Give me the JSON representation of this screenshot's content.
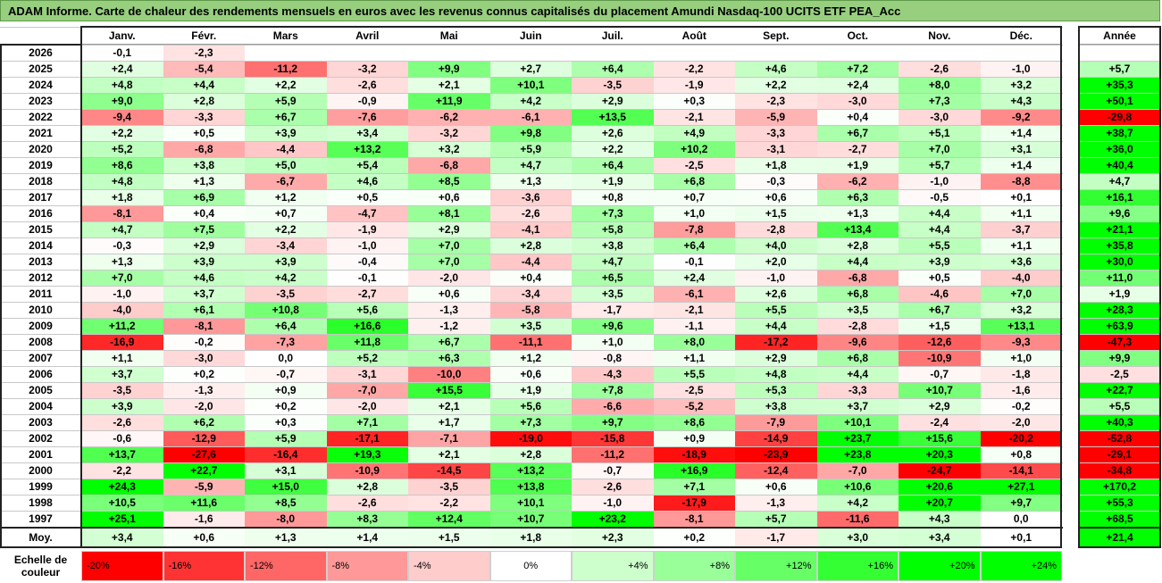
{
  "title": "ADAM Informe. Carte de chaleur des rendements mensuels en euros avec les revenus connus capitalisés du placement Amundi Nasdaq-100 UCITS ETF PEA_Acc",
  "colors": {
    "title_bg": "#97cf7f",
    "negative": "#ff0000",
    "positive": "#00ff00",
    "zero": "#ffffff"
  },
  "chart_data": {
    "type": "heatmap",
    "title": "ADAM Informe. Carte de chaleur des rendements mensuels en euros avec les revenus connus capitalisés du placement Amundi Nasdaq-100 UCITS ETF PEA_Acc",
    "columns": [
      "Janv.",
      "Févr.",
      "Mars",
      "Avril",
      "Mai",
      "Juin",
      "Juil.",
      "Août",
      "Sept.",
      "Oct.",
      "Nov.",
      "Déc."
    ],
    "year_column_label": "Année",
    "rows": [
      {
        "year": "2026",
        "values": [
          "-0,1",
          "-2,3",
          "",
          "",
          "",
          "",
          "",
          "",
          "",
          "",
          "",
          ""
        ],
        "annual": ""
      },
      {
        "year": "2025",
        "values": [
          "+2,4",
          "-5,4",
          "-11,2",
          "-3,2",
          "+9,9",
          "+2,7",
          "+6,4",
          "-2,2",
          "+4,6",
          "+7,2",
          "-2,6",
          "-1,0"
        ],
        "annual": "+5,7"
      },
      {
        "year": "2024",
        "values": [
          "+4,8",
          "+4,4",
          "+2,2",
          "-2,6",
          "+2,1",
          "+10,1",
          "-3,5",
          "-1,9",
          "+2,2",
          "+2,4",
          "+8,0",
          "+3,2"
        ],
        "annual": "+35,3"
      },
      {
        "year": "2023",
        "values": [
          "+9,0",
          "+2,8",
          "+5,9",
          "-0,9",
          "+11,9",
          "+4,2",
          "+2,9",
          "+0,3",
          "-2,3",
          "-3,0",
          "+7,3",
          "+4,3"
        ],
        "annual": "+50,1"
      },
      {
        "year": "2022",
        "values": [
          "-9,4",
          "-3,3",
          "+6,7",
          "-7,6",
          "-6,2",
          "-6,1",
          "+13,5",
          "-2,1",
          "-5,9",
          "+0,4",
          "-3,0",
          "-9,2"
        ],
        "annual": "-29,8"
      },
      {
        "year": "2021",
        "values": [
          "+2,2",
          "+0,5",
          "+3,9",
          "+3,4",
          "-3,2",
          "+9,8",
          "+2,6",
          "+4,9",
          "-3,3",
          "+6,7",
          "+5,1",
          "+1,4"
        ],
        "annual": "+38,7"
      },
      {
        "year": "2020",
        "values": [
          "+5,2",
          "-6,8",
          "-4,4",
          "+13,2",
          "+3,2",
          "+5,9",
          "+2,2",
          "+10,2",
          "-3,1",
          "-2,7",
          "+7,0",
          "+3,1"
        ],
        "annual": "+36,0"
      },
      {
        "year": "2019",
        "values": [
          "+8,6",
          "+3,8",
          "+5,0",
          "+5,4",
          "-6,8",
          "+4,7",
          "+6,4",
          "-2,5",
          "+1,8",
          "+1,9",
          "+5,7",
          "+1,4"
        ],
        "annual": "+40,4"
      },
      {
        "year": "2018",
        "values": [
          "+4,8",
          "+1,3",
          "-6,7",
          "+4,6",
          "+8,5",
          "+1,3",
          "+1,9",
          "+6,8",
          "-0,3",
          "-6,2",
          "-1,0",
          "-8,8"
        ],
        "annual": "+4,7"
      },
      {
        "year": "2017",
        "values": [
          "+1,8",
          "+6,9",
          "+1,2",
          "+0,5",
          "+0,6",
          "-3,6",
          "+0,8",
          "+0,7",
          "+0,6",
          "+6,3",
          "-0,5",
          "+0,1"
        ],
        "annual": "+16,1"
      },
      {
        "year": "2016",
        "values": [
          "-8,1",
          "+0,4",
          "+0,7",
          "-4,7",
          "+8,1",
          "-2,6",
          "+7,3",
          "+1,0",
          "+1,5",
          "+1,3",
          "+4,4",
          "+1,1"
        ],
        "annual": "+9,6"
      },
      {
        "year": "2015",
        "values": [
          "+4,7",
          "+7,5",
          "+2,2",
          "-1,9",
          "+2,9",
          "-4,1",
          "+5,8",
          "-7,8",
          "-2,8",
          "+13,4",
          "+4,4",
          "-3,7"
        ],
        "annual": "+21,1"
      },
      {
        "year": "2014",
        "values": [
          "-0,3",
          "+2,9",
          "-3,4",
          "-1,0",
          "+7,0",
          "+2,8",
          "+3,8",
          "+6,4",
          "+4,0",
          "+2,8",
          "+5,5",
          "+1,1"
        ],
        "annual": "+35,8"
      },
      {
        "year": "2013",
        "values": [
          "+1,3",
          "+3,9",
          "+3,9",
          "-0,4",
          "+7,0",
          "-4,4",
          "+4,7",
          "-0,1",
          "+2,0",
          "+4,4",
          "+3,9",
          "+3,6"
        ],
        "annual": "+30,0"
      },
      {
        "year": "2012",
        "values": [
          "+7,0",
          "+4,6",
          "+4,2",
          "-0,1",
          "-2,0",
          "+0,4",
          "+6,5",
          "+2,4",
          "-1,0",
          "-6,8",
          "+0,5",
          "-4,0"
        ],
        "annual": "+11,0"
      },
      {
        "year": "2011",
        "values": [
          "-1,0",
          "+3,7",
          "-3,5",
          "-2,7",
          "+0,6",
          "-3,4",
          "+3,5",
          "-6,1",
          "+2,6",
          "+6,8",
          "-4,6",
          "+7,0"
        ],
        "annual": "+1,9"
      },
      {
        "year": "2010",
        "values": [
          "-4,0",
          "+6,1",
          "+10,8",
          "+5,6",
          "-1,3",
          "-5,8",
          "-1,7",
          "-2,1",
          "+5,5",
          "+3,5",
          "+6,7",
          "+3,2"
        ],
        "annual": "+28,3"
      },
      {
        "year": "2009",
        "values": [
          "+11,2",
          "-8,1",
          "+6,4",
          "+16,6",
          "-1,2",
          "+3,5",
          "+9,6",
          "-1,1",
          "+4,4",
          "-2,8",
          "+1,5",
          "+13,1"
        ],
        "annual": "+63,9"
      },
      {
        "year": "2008",
        "values": [
          "-16,9",
          "-0,2",
          "-7,3",
          "+11,8",
          "+6,7",
          "-11,1",
          "+1,0",
          "+8,0",
          "-17,2",
          "-9,6",
          "-12,6",
          "-9,3"
        ],
        "annual": "-47,3"
      },
      {
        "year": "2007",
        "values": [
          "+1,1",
          "-3,0",
          "0,0",
          "+5,2",
          "+6,3",
          "+1,2",
          "-0,8",
          "+1,1",
          "+2,9",
          "+6,8",
          "-10,9",
          "+1,0"
        ],
        "annual": "+9,9"
      },
      {
        "year": "2006",
        "values": [
          "+3,7",
          "+0,2",
          "-0,7",
          "-3,1",
          "-10,0",
          "+0,6",
          "-4,3",
          "+5,5",
          "+4,8",
          "+4,4",
          "-0,7",
          "-1,8"
        ],
        "annual": "-2,5"
      },
      {
        "year": "2005",
        "values": [
          "-3,5",
          "-1,3",
          "+0,9",
          "-7,0",
          "+15,5",
          "+1,9",
          "+7,8",
          "-2,5",
          "+5,3",
          "-3,3",
          "+10,7",
          "-1,6"
        ],
        "annual": "+22,7"
      },
      {
        "year": "2004",
        "values": [
          "+3,9",
          "-2,0",
          "+0,2",
          "-2,0",
          "+2,1",
          "+5,6",
          "-6,6",
          "-5,2",
          "+3,8",
          "+3,7",
          "+2,9",
          "-0,2"
        ],
        "annual": "+5,5"
      },
      {
        "year": "2003",
        "values": [
          "-2,6",
          "+6,2",
          "+0,3",
          "+7,1",
          "+1,7",
          "+7,3",
          "+9,7",
          "+8,6",
          "-7,9",
          "+10,1",
          "-2,4",
          "-2,0"
        ],
        "annual": "+40,3"
      },
      {
        "year": "2002",
        "values": [
          "-0,6",
          "-12,9",
          "+5,9",
          "-17,1",
          "-7,1",
          "-19,0",
          "-15,8",
          "+0,9",
          "-14,9",
          "+23,7",
          "+15,6",
          "-20,2"
        ],
        "annual": "-52,8"
      },
      {
        "year": "2001",
        "values": [
          "+13,7",
          "-27,6",
          "-16,4",
          "+19,3",
          "+2,1",
          "+2,8",
          "-11,2",
          "-18,9",
          "-23,9",
          "+23,8",
          "+20,3",
          "+0,8"
        ],
        "annual": "-29,1"
      },
      {
        "year": "2000",
        "values": [
          "-2,2",
          "+22,7",
          "+3,1",
          "-10,9",
          "-14,5",
          "+13,2",
          "-0,7",
          "+16,9",
          "-12,4",
          "-7,0",
          "-24,7",
          "-14,1"
        ],
        "annual": "-34,8"
      },
      {
        "year": "1999",
        "values": [
          "+24,3",
          "-5,9",
          "+15,0",
          "+2,8",
          "-3,5",
          "+13,8",
          "-2,6",
          "+7,1",
          "+0,6",
          "+10,6",
          "+20,6",
          "+27,1"
        ],
        "annual": "+170,2"
      },
      {
        "year": "1998",
        "values": [
          "+10,5",
          "+11,6",
          "+8,5",
          "-2,6",
          "-2,2",
          "+10,1",
          "-1,0",
          "-17,9",
          "-1,3",
          "+4,2",
          "+20,7",
          "+9,7"
        ],
        "annual": "+55,3"
      },
      {
        "year": "1997",
        "values": [
          "+25,1",
          "-1,6",
          "-8,0",
          "+8,3",
          "+12,4",
          "+10,7",
          "+23,2",
          "-8,1",
          "+5,7",
          "-11,6",
          "+4,3",
          "0,0"
        ],
        "annual": "+68,5"
      }
    ],
    "average_row": {
      "label": "Moy.",
      "values": [
        "+3,4",
        "+0,6",
        "+1,3",
        "+1,4",
        "+1,5",
        "+1,8",
        "+2,3",
        "+0,2",
        "-1,7",
        "+3,0",
        "+3,4",
        "+0,1"
      ],
      "annual": "+21,4"
    },
    "scale": {
      "label_line1": "Echelle de",
      "label_line2": "couleur",
      "steps": [
        {
          "label": "-20%",
          "value": -20
        },
        {
          "label": "-16%",
          "value": -16
        },
        {
          "label": "-12%",
          "value": -12
        },
        {
          "label": "-8%",
          "value": -8
        },
        {
          "label": "-4%",
          "value": -4
        },
        {
          "label": "0%",
          "value": 0
        },
        {
          "label": "+4%",
          "value": 4
        },
        {
          "label": "+8%",
          "value": 8
        },
        {
          "label": "+12%",
          "value": 12
        },
        {
          "label": "+16%",
          "value": 16
        },
        {
          "label": "+20%",
          "value": 20
        },
        {
          "label": "+24%",
          "value": 24
        }
      ]
    }
  }
}
